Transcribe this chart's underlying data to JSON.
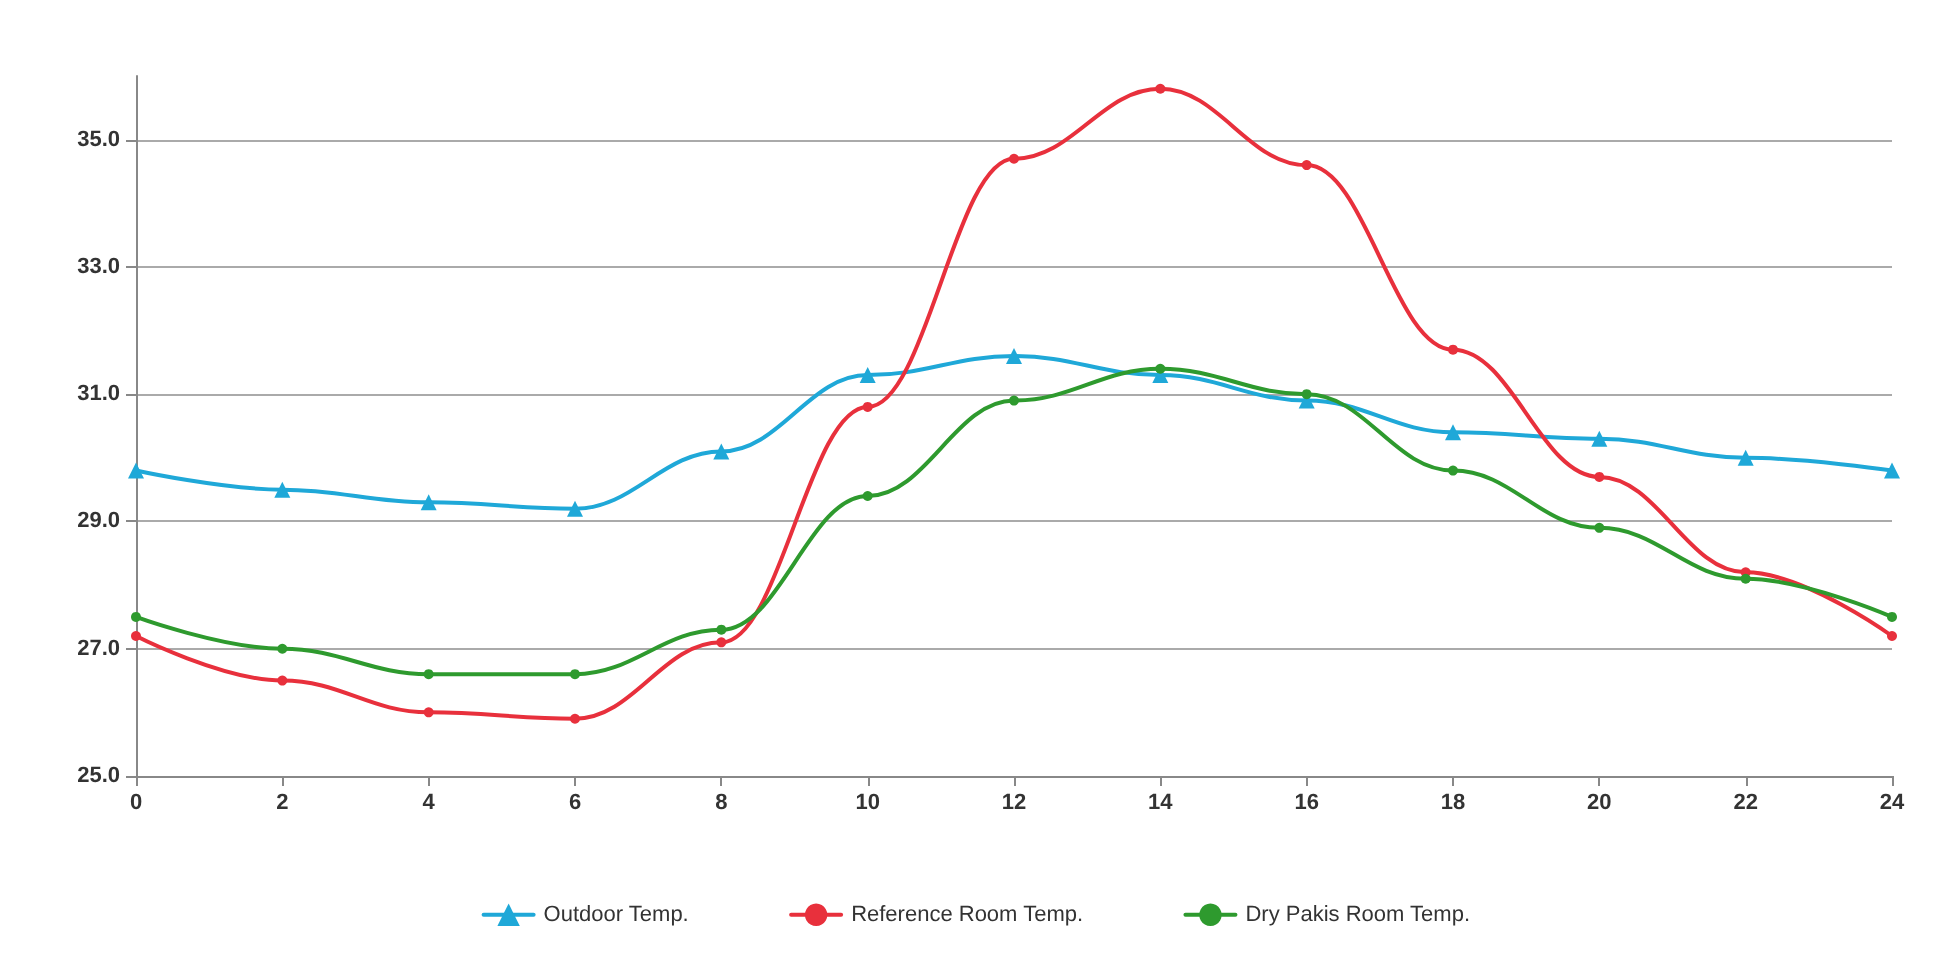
{
  "chart_data": {
    "type": "line",
    "x": [
      0,
      2,
      4,
      6,
      8,
      10,
      12,
      14,
      16,
      18,
      20,
      22,
      24
    ],
    "xlim": [
      0,
      24
    ],
    "xticks": [
      0,
      2,
      4,
      6,
      8,
      10,
      12,
      14,
      16,
      18,
      20,
      22,
      24
    ],
    "ylim": [
      25,
      36
    ],
    "yticks": [
      {
        "value": 25,
        "label": "25.0"
      },
      {
        "value": 27,
        "label": "27.0"
      },
      {
        "value": 29,
        "label": "29.0"
      },
      {
        "value": 31,
        "label": "31.0"
      },
      {
        "value": 33,
        "label": "33.0"
      },
      {
        "value": 35,
        "label": "35.0"
      }
    ],
    "grid": "y",
    "legend": "bottom",
    "line_style": "solid",
    "series": [
      {
        "name": "Outdoor Temp.",
        "color": "#1fa8d8",
        "marker": "triangle",
        "values": [
          29.8,
          29.5,
          29.3,
          29.2,
          30.1,
          31.3,
          31.6,
          31.3,
          30.9,
          30.4,
          30.3,
          30.0,
          29.8
        ]
      },
      {
        "name": "Reference Room Temp.",
        "color": "#e8303c",
        "marker": "circle",
        "values": [
          27.2,
          26.5,
          26.0,
          25.9,
          27.1,
          30.8,
          34.7,
          35.8,
          34.6,
          31.7,
          29.7,
          28.2,
          27.2
        ]
      },
      {
        "name": "Dry Pakis Room Temp.",
        "color": "#2e9a2e",
        "marker": "circle",
        "values": [
          27.5,
          27.0,
          26.6,
          26.6,
          27.3,
          29.4,
          30.9,
          31.4,
          31.0,
          29.8,
          28.9,
          28.1,
          27.5
        ]
      }
    ]
  }
}
